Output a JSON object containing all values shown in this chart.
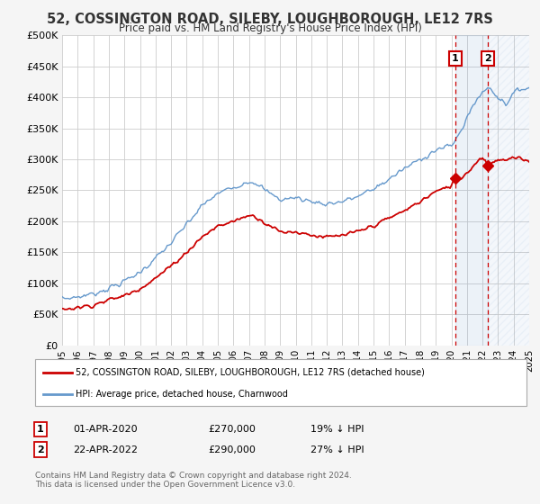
{
  "title": "52, COSSINGTON ROAD, SILEBY, LOUGHBOROUGH, LE12 7RS",
  "subtitle": "Price paid vs. HM Land Registry's House Price Index (HPI)",
  "ylabel_ticks": [
    "£0",
    "£50K",
    "£100K",
    "£150K",
    "£200K",
    "£250K",
    "£300K",
    "£350K",
    "£400K",
    "£450K",
    "£500K"
  ],
  "ytick_values": [
    0,
    50000,
    100000,
    150000,
    200000,
    250000,
    300000,
    350000,
    400000,
    450000,
    500000
  ],
  "ylim": [
    0,
    500000
  ],
  "xlim_start": 1995.0,
  "xlim_end": 2025.0,
  "hpi_color": "#6699cc",
  "price_color": "#cc0000",
  "background_color": "#f5f5f5",
  "plot_bg_color": "#ffffff",
  "sale1_date": 2020.25,
  "sale1_price": 270000,
  "sale1_label": "01-APR-2020",
  "sale1_pct": "19% ↓ HPI",
  "sale2_date": 2022.33,
  "sale2_price": 290000,
  "sale2_label": "22-APR-2022",
  "sale2_pct": "27% ↓ HPI",
  "legend_line1": "52, COSSINGTON ROAD, SILEBY, LOUGHBOROUGH, LE12 7RS (detached house)",
  "legend_line2": "HPI: Average price, detached house, Charnwood",
  "footnote": "Contains HM Land Registry data © Crown copyright and database right 2024.\nThis data is licensed under the Open Government Licence v3.0.",
  "xtick_years": [
    1995,
    1996,
    1997,
    1998,
    1999,
    2000,
    2001,
    2002,
    2003,
    2004,
    2005,
    2006,
    2007,
    2008,
    2009,
    2010,
    2011,
    2012,
    2013,
    2014,
    2015,
    2016,
    2017,
    2018,
    2019,
    2020,
    2021,
    2022,
    2023,
    2024,
    2025
  ]
}
